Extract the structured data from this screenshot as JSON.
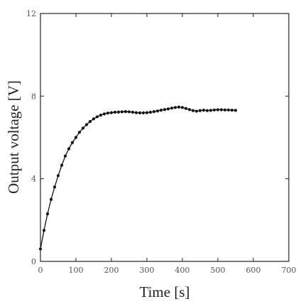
{
  "chart_data": {
    "type": "line",
    "xlabel": "Time [s]",
    "ylabel": "Output voltage [V]",
    "xlim": [
      0,
      700
    ],
    "ylim": [
      0,
      12
    ],
    "xticks": [
      0,
      100,
      200,
      300,
      400,
      500,
      600,
      700
    ],
    "yticks": [
      0,
      4,
      8,
      12
    ],
    "xtick_labels": [
      "0",
      "100",
      "200",
      "300",
      "400",
      "500",
      "600",
      "700"
    ],
    "ytick_labels": [
      "0",
      "4",
      "8",
      "12"
    ],
    "grid": false,
    "marker": "filled-circle",
    "series": [
      {
        "color": "#111111",
        "x": [
          0,
          10,
          20,
          30,
          40,
          50,
          60,
          70,
          80,
          90,
          100,
          110,
          120,
          130,
          140,
          150,
          160,
          170,
          180,
          190,
          200,
          210,
          220,
          230,
          240,
          250,
          260,
          270,
          280,
          290,
          300,
          310,
          320,
          330,
          340,
          350,
          360,
          370,
          380,
          390,
          400,
          410,
          420,
          430,
          440,
          450,
          460,
          470,
          480,
          490,
          500,
          510,
          520,
          530,
          540,
          550
        ],
        "y": [
          0.6,
          1.5,
          2.3,
          3.0,
          3.6,
          4.15,
          4.65,
          5.1,
          5.45,
          5.75,
          6.0,
          6.25,
          6.45,
          6.62,
          6.77,
          6.9,
          7.0,
          7.08,
          7.14,
          7.18,
          7.2,
          7.22,
          7.23,
          7.24,
          7.25,
          7.24,
          7.22,
          7.2,
          7.19,
          7.19,
          7.2,
          7.22,
          7.25,
          7.28,
          7.32,
          7.35,
          7.38,
          7.42,
          7.45,
          7.47,
          7.45,
          7.4,
          7.35,
          7.3,
          7.27,
          7.3,
          7.32,
          7.3,
          7.31,
          7.33,
          7.34,
          7.34,
          7.33,
          7.33,
          7.32,
          7.31
        ]
      }
    ]
  }
}
